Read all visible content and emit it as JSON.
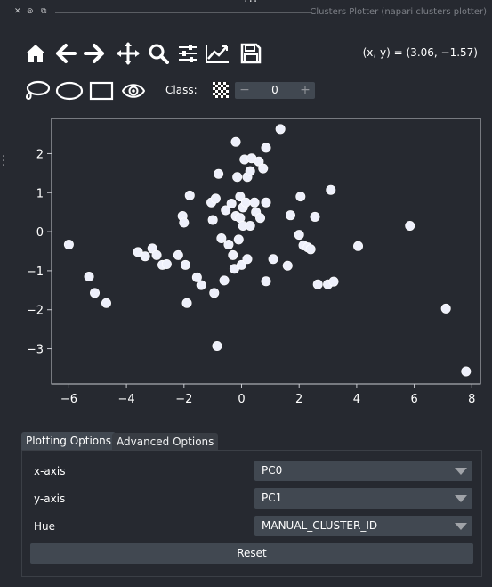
{
  "window": {
    "title": "Clusters Plotter (napari clusters plotter)",
    "title_buttons": [
      "close-icon",
      "float-icon",
      "restore-icon"
    ]
  },
  "toolbar": {
    "tools": [
      "home-icon",
      "back-arrow-icon",
      "forward-arrow-icon",
      "pan-icon",
      "zoom-icon",
      "configure-subplots-icon",
      "edit-axis-icon",
      "save-icon"
    ],
    "selection_tools": [
      "lasso-icon",
      "ellipse-select-icon",
      "rectangle-select-icon",
      "eye-icon"
    ],
    "coords": "(x, y) = (3.06, −1.57)",
    "class_label": "Class:",
    "class_value": "0",
    "minus": "−",
    "plus": "+"
  },
  "chart_data": {
    "type": "scatter",
    "title": "",
    "xlabel": "",
    "ylabel": "",
    "xlim": [
      -6.6,
      8.3
    ],
    "ylim": [
      -3.9,
      2.9
    ],
    "xticks": [
      -6,
      -4,
      -2,
      0,
      2,
      4,
      6,
      8
    ],
    "yticks": [
      -3,
      -2,
      -1,
      0,
      1,
      2
    ],
    "point_color": "#eef0fb",
    "grid": false,
    "points": [
      [
        -6.0,
        -0.33
      ],
      [
        -5.3,
        -1.15
      ],
      [
        -5.1,
        -1.57
      ],
      [
        -4.7,
        -1.83
      ],
      [
        -3.6,
        -0.52
      ],
      [
        -3.35,
        -0.63
      ],
      [
        -3.1,
        -0.43
      ],
      [
        -2.95,
        -0.6
      ],
      [
        -2.75,
        -0.85
      ],
      [
        -2.6,
        -0.83
      ],
      [
        -2.2,
        -0.6
      ],
      [
        -2.05,
        0.4
      ],
      [
        -2.0,
        0.23
      ],
      [
        -1.95,
        -0.85
      ],
      [
        -1.9,
        -1.83
      ],
      [
        -1.8,
        0.93
      ],
      [
        -1.55,
        -1.17
      ],
      [
        -1.4,
        -1.37
      ],
      [
        -1.05,
        0.75
      ],
      [
        -1.0,
        0.3
      ],
      [
        -0.95,
        -1.57
      ],
      [
        -0.9,
        0.85
      ],
      [
        -0.85,
        -2.93
      ],
      [
        -0.8,
        1.48
      ],
      [
        -0.7,
        -0.17
      ],
      [
        -0.6,
        -1.25
      ],
      [
        -0.55,
        0.55
      ],
      [
        -0.45,
        -0.33
      ],
      [
        -0.35,
        0.72
      ],
      [
        -0.3,
        -0.6
      ],
      [
        -0.25,
        -0.95
      ],
      [
        -0.2,
        2.3
      ],
      [
        -0.2,
        0.4
      ],
      [
        -0.15,
        1.4
      ],
      [
        -0.1,
        -0.2
      ],
      [
        -0.05,
        0.35
      ],
      [
        -0.05,
        0.9
      ],
      [
        0.0,
        -0.85
      ],
      [
        0.05,
        0.62
      ],
      [
        0.05,
        0.15
      ],
      [
        0.1,
        1.85
      ],
      [
        0.15,
        0.75
      ],
      [
        0.2,
        -0.7
      ],
      [
        0.2,
        1.4
      ],
      [
        0.3,
        1.55
      ],
      [
        0.3,
        0.15
      ],
      [
        0.35,
        1.88
      ],
      [
        0.45,
        0.75
      ],
      [
        0.5,
        0.5
      ],
      [
        0.6,
        1.8
      ],
      [
        0.65,
        0.35
      ],
      [
        0.75,
        1.62
      ],
      [
        0.85,
        2.15
      ],
      [
        0.85,
        0.75
      ],
      [
        0.85,
        -1.27
      ],
      [
        1.1,
        -0.7
      ],
      [
        1.35,
        2.63
      ],
      [
        1.6,
        -0.87
      ],
      [
        1.7,
        0.42
      ],
      [
        2.0,
        -0.08
      ],
      [
        2.05,
        0.9
      ],
      [
        2.15,
        -0.35
      ],
      [
        2.3,
        -0.4
      ],
      [
        2.4,
        -0.45
      ],
      [
        2.55,
        0.38
      ],
      [
        2.65,
        -1.35
      ],
      [
        3.0,
        -1.35
      ],
      [
        3.1,
        1.07
      ],
      [
        3.2,
        -1.28
      ],
      [
        4.05,
        -0.37
      ],
      [
        5.85,
        0.15
      ],
      [
        7.1,
        -1.97
      ],
      [
        7.8,
        -3.58
      ]
    ]
  },
  "tabs": [
    "Plotting Options",
    "Advanced Options"
  ],
  "options": {
    "x_axis": {
      "label": "x-axis",
      "value": "PC0"
    },
    "y_axis": {
      "label": "y-axis",
      "value": "PC1"
    },
    "hue": {
      "label": "Hue",
      "value": "MANUAL_CLUSTER_ID"
    }
  },
  "reset_label": "Reset"
}
